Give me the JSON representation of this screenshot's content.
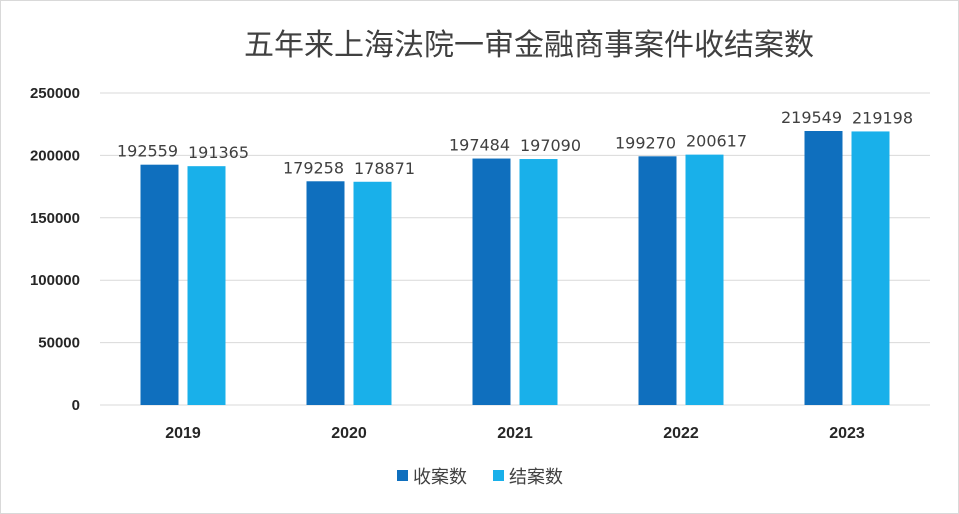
{
  "chart_data": {
    "type": "bar",
    "title": "五年来上海法院一审金融商事案件收结案数",
    "categories": [
      "2019",
      "2020",
      "2021",
      "2022",
      "2023"
    ],
    "series": [
      {
        "name": "收案数",
        "color": "#0f6fbe",
        "values": [
          192559,
          179258,
          197484,
          199270,
          219549
        ]
      },
      {
        "name": "结案数",
        "color": "#19b0ea",
        "values": [
          191365,
          178871,
          197090,
          200617,
          219198
        ]
      }
    ],
    "yticks": [
      "0",
      "50000",
      "100000",
      "150000",
      "200000",
      "250000"
    ],
    "ylim": [
      0,
      250000
    ],
    "grid": true,
    "legend_position": "bottom",
    "xlabel": "",
    "ylabel": ""
  }
}
